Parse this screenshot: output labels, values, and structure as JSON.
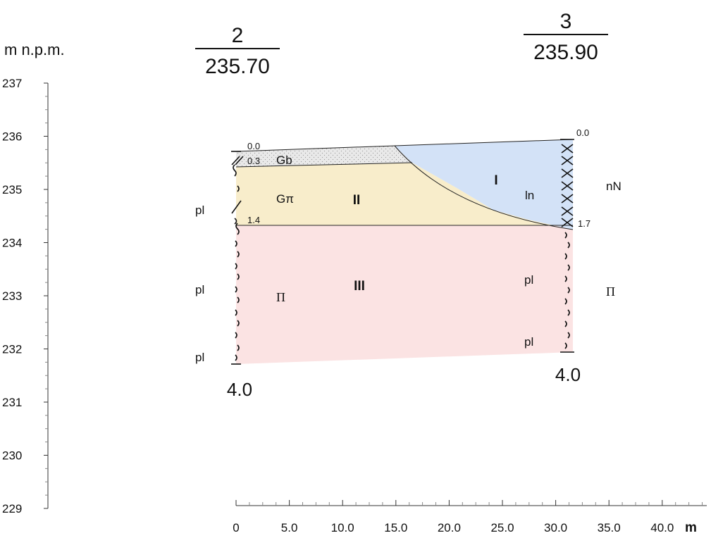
{
  "axis": {
    "y_label": "m n.p.m.",
    "y_ticks": [
      "237",
      "236",
      "235",
      "234",
      "233",
      "232",
      "231",
      "230",
      "229"
    ],
    "x_ticks": [
      "0",
      "5.0",
      "10.0",
      "15.0",
      "20.0",
      "25.0",
      "30.0",
      "35.0",
      "40.0"
    ],
    "x_unit": "m"
  },
  "boreholes": [
    {
      "number": "2",
      "elevation": "235.70",
      "depth_top": "0.0",
      "depth_mid1": "0.3",
      "depth_mid2": "1.4",
      "depth_bottom": "4.0"
    },
    {
      "number": "3",
      "elevation": "235.90",
      "depth_top": "0.0",
      "depth_mid": "1.7",
      "depth_bottom": "4.0"
    }
  ],
  "layers": {
    "layer_I": "I",
    "layer_II": "II",
    "layer_III": "III"
  },
  "soil_labels": {
    "gb": "Gb",
    "gpi": "Gπ",
    "pi_left": "Π",
    "pi_right": "Π",
    "ln": "ln",
    "nn": "nN",
    "pl_left_1": "pl",
    "pl_left_2": "pl",
    "pl_left_3": "pl",
    "pl_right_1": "pl",
    "pl_right_2": "pl"
  },
  "colors": {
    "layer_I": "#d3e2f7",
    "layer_II": "#f8edcb",
    "layer_III": "#fbe3e3",
    "gb_layer": "#e6e6e6"
  },
  "chart_data": {
    "type": "geological-cross-section",
    "ylabel": "m n.p.m.",
    "xlabel": "m",
    "ylim": [
      229,
      237
    ],
    "xlim": [
      0,
      45
    ],
    "boreholes": [
      {
        "id": "2",
        "x": 0,
        "top_elevation": 235.7,
        "intervals": [
          [
            0.0,
            0.3,
            "Gb"
          ],
          [
            0.3,
            1.4,
            "Gπ"
          ],
          [
            1.4,
            4.0,
            "Π"
          ]
        ]
      },
      {
        "id": "3",
        "x": 31.2,
        "top_elevation": 235.9,
        "intervals": [
          [
            0.0,
            1.7,
            "nN"
          ],
          [
            1.7,
            4.0,
            "Π"
          ]
        ]
      }
    ]
  }
}
